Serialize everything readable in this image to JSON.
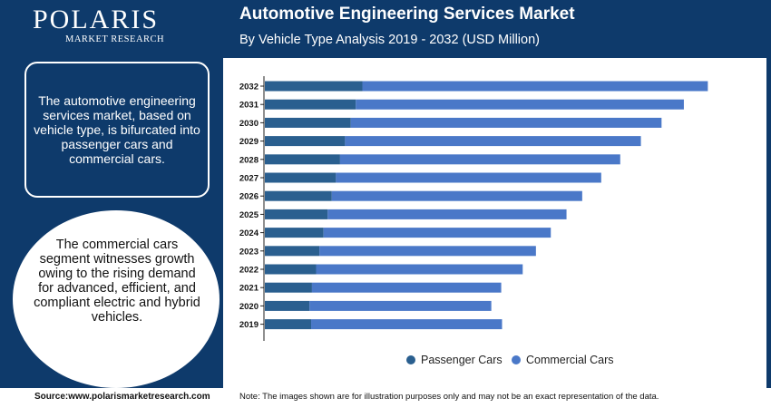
{
  "brand": {
    "name": "POLARIS",
    "sub": "MARKET RESEARCH"
  },
  "header": {
    "title": "Automotive Engineering Services Market",
    "subtitle": "By Vehicle Type Analysis 2019 - 2032 (USD Million)"
  },
  "sidebar": {
    "box_text": "The automotive engineering services market, based on vehicle type, is bifurcated into passenger cars and commercial cars.",
    "circle_text": "The commercial cars segment witnesses growth owing to the rising demand for advanced, efficient, and compliant electric and hybrid vehicles."
  },
  "footer": {
    "source": "Source:www.polarismarketresearch.com",
    "note": "Note: The images shown are for illustration purposes only and may not be an exact representation of the data."
  },
  "colors": {
    "passenger": "#2a5f8f",
    "commercial": "#4a78c8",
    "background": "#0e3a6b"
  },
  "chart_data": {
    "type": "bar",
    "orientation": "horizontal",
    "stacked": true,
    "categories": [
      "2032",
      "2031",
      "2030",
      "2029",
      "2028",
      "2027",
      "2026",
      "2025",
      "2024",
      "2023",
      "2022",
      "2021",
      "2020",
      "2019"
    ],
    "series": [
      {
        "name": "Passenger Cars",
        "values": [
          118,
          110,
          104,
          97,
          91,
          86,
          81,
          76,
          71,
          66,
          62,
          57,
          54,
          56
        ]
      },
      {
        "name": "Commercial Cars",
        "values": [
          418,
          397,
          376,
          358,
          339,
          321,
          303,
          289,
          275,
          262,
          250,
          229,
          220,
          231
        ]
      }
    ],
    "xlim": [
      0,
      540
    ],
    "legend": [
      "Passenger Cars",
      "Commercial Cars"
    ],
    "legend_position": "bottom"
  }
}
